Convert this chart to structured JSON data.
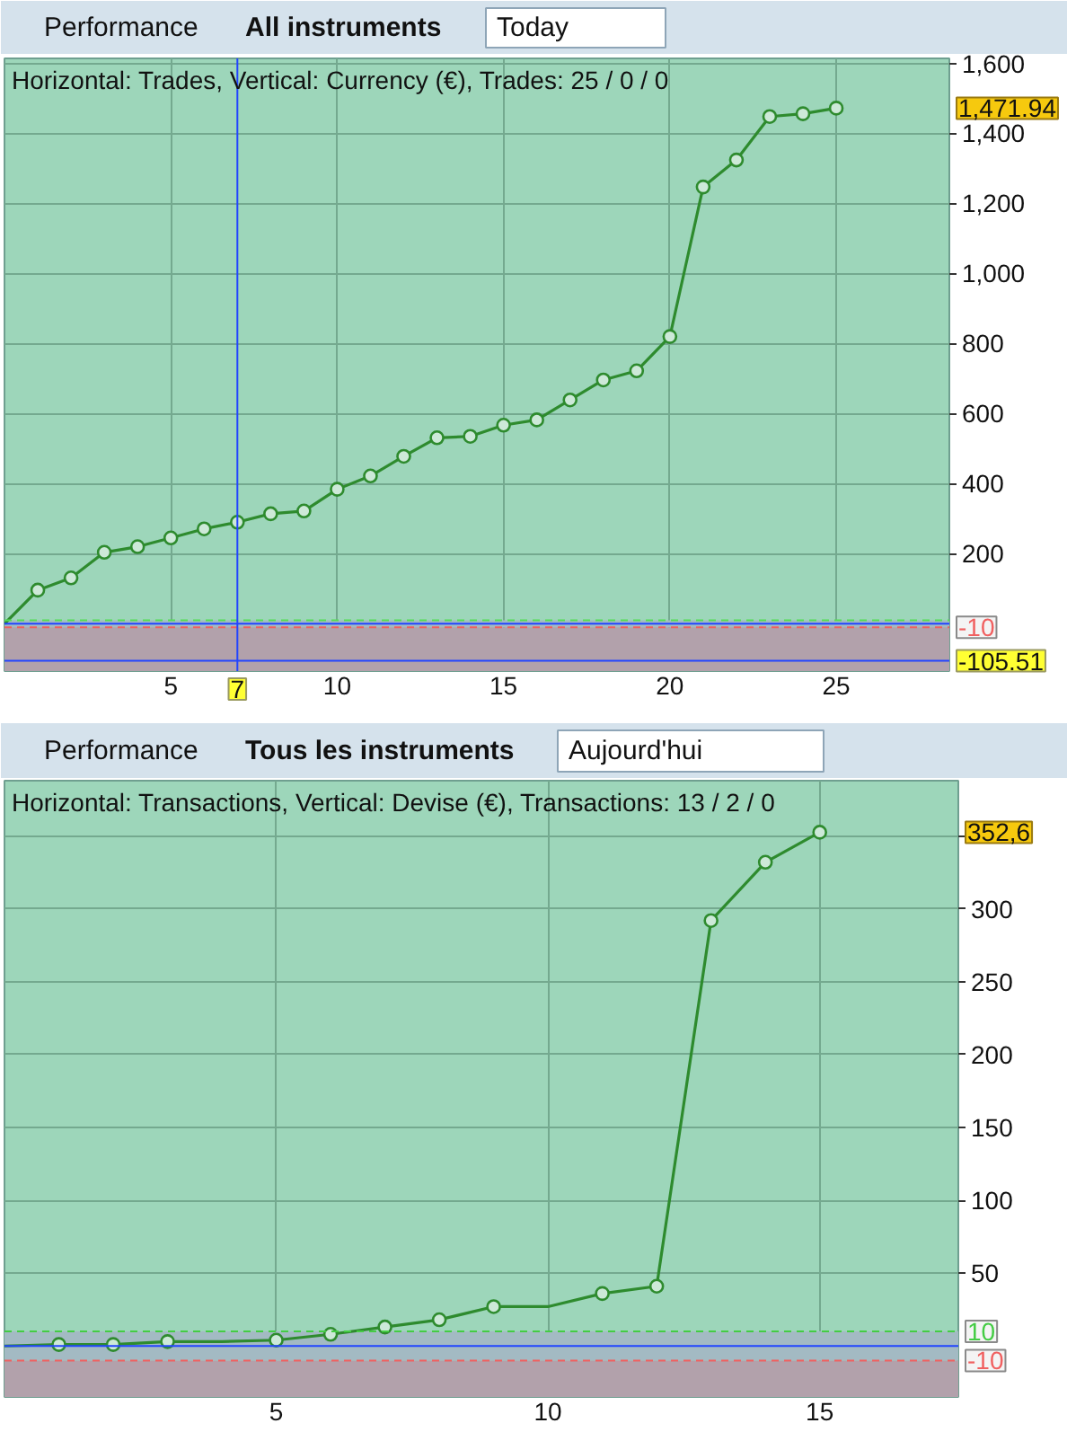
{
  "chart_data": [
    {
      "type": "line",
      "title": "Horizontal: Trades, Vertical: Currency (€), Trades: 25 / 0 / 0",
      "annotations": [
        "Performance",
        "All instruments",
        "Today",
        "1,471.94"
      ],
      "series": [
        {
          "color": "#2e8b2e",
          "x": [
            0,
            1,
            2,
            3,
            4,
            5,
            6,
            7,
            8,
            9,
            10,
            11,
            12,
            13,
            14,
            15,
            16,
            17,
            18,
            19,
            20,
            21,
            22,
            23,
            24,
            25
          ],
          "values": [
            0,
            96,
            131,
            204,
            220,
            245,
            271,
            290,
            314,
            322,
            384,
            422,
            478,
            531,
            535,
            567,
            582,
            639,
            696,
            722,
            820,
            1247,
            1324,
            1448,
            1456,
            1471.94
          ]
        },
        {
          "type": "scatter",
          "marker": "circle",
          "color": "#2e8b2e",
          "x": [
            1,
            2,
            3,
            4,
            5,
            6,
            7,
            8,
            9,
            10,
            11,
            12,
            13,
            14,
            15,
            16,
            17,
            18,
            19,
            20,
            21,
            22,
            23,
            24,
            25
          ],
          "values": [
            96,
            131,
            204,
            220,
            245,
            271,
            290,
            314,
            322,
            384,
            422,
            478,
            531,
            535,
            567,
            582,
            639,
            696,
            722,
            820,
            1247,
            1324,
            1448,
            1456,
            1471.94
          ]
        }
      ],
      "xlim": [
        0,
        28.4
      ],
      "xticks": [
        5,
        10,
        15,
        20,
        25
      ],
      "ylim": [
        -135,
        1614
      ],
      "yticks": [
        200,
        400,
        600,
        800,
        {
          "value": 1000,
          "label": "1,000"
        },
        {
          "value": 1200,
          "label": "1,200"
        },
        {
          "value": 1400,
          "label": "1,400"
        },
        {
          "value": 1600,
          "label": "1,600"
        }
      ],
      "grid": true,
      "line_style": "solid",
      "bands": [
        {
          "axis": "y",
          "from": -10,
          "to": 10,
          "color": "#a3bac3"
        },
        {
          "axis": "y",
          "from": -135,
          "to": -10,
          "color": "#b2a1ab"
        }
      ],
      "ref_lines": [
        {
          "axis": "y",
          "value": 10,
          "color": "#55dd55",
          "line_style": "dashed"
        },
        {
          "axis": "y",
          "value": -10,
          "label": "-10",
          "color": "#f06060",
          "line_style": "dashed"
        },
        {
          "axis": "y",
          "value": 0,
          "color": "#2244ff",
          "line_style": "solid"
        },
        {
          "axis": "y",
          "value": -105.51,
          "label": "-105.51",
          "color": "#2244ff",
          "line_style": "solid"
        },
        {
          "axis": "x",
          "value": 7,
          "label": "7",
          "color": "#2244ff",
          "line_style": "solid"
        }
      ]
    },
    {
      "type": "line",
      "title": "Horizontal: Transactions, Vertical: Devise (€), Transactions: 13 / 2 / 0",
      "annotations": [
        "Performance",
        "Tous les instruments",
        "Aujourd'hui",
        "352,6"
      ],
      "series": [
        {
          "color": "#2e8b2e",
          "x": [
            0,
            1,
            2,
            3,
            4,
            5,
            6,
            7,
            8,
            9,
            10,
            11,
            12,
            13,
            14,
            15
          ],
          "values": [
            0,
            1,
            1,
            3,
            3,
            4,
            8,
            13,
            18,
            27,
            27,
            36,
            41,
            292,
            332,
            352.6
          ]
        },
        {
          "type": "scatter",
          "marker": "circle",
          "color": "#2e8b2e",
          "x": [
            1,
            2,
            3,
            5,
            6,
            7,
            8,
            9,
            11,
            12,
            13,
            14,
            15
          ],
          "values": [
            1,
            1,
            3,
            4,
            8,
            13,
            18,
            27,
            36,
            41,
            292,
            332,
            352.6
          ]
        }
      ],
      "xlim": [
        0,
        17.55
      ],
      "xticks": [
        5,
        10,
        15
      ],
      "ylim": [
        -35,
        388
      ],
      "yticks": [
        50,
        100,
        150,
        200,
        250,
        300,
        {
          "value": 350,
          "label": null
        }
      ],
      "grid": true,
      "line_style": "solid",
      "bands": [
        {
          "axis": "y",
          "from": -10,
          "to": 10,
          "color": "#a3bac3"
        },
        {
          "axis": "y",
          "from": -35,
          "to": -10,
          "color": "#b2a1ab"
        }
      ],
      "ref_lines": [
        {
          "axis": "y",
          "value": 10,
          "label": "10",
          "color": "#44cc44",
          "line_style": "dashed"
        },
        {
          "axis": "y",
          "value": -10,
          "label": "-10",
          "color": "#f06060",
          "line_style": "dashed"
        },
        {
          "axis": "y",
          "value": 0,
          "color": "#2244ff",
          "line_style": "solid"
        }
      ]
    }
  ]
}
